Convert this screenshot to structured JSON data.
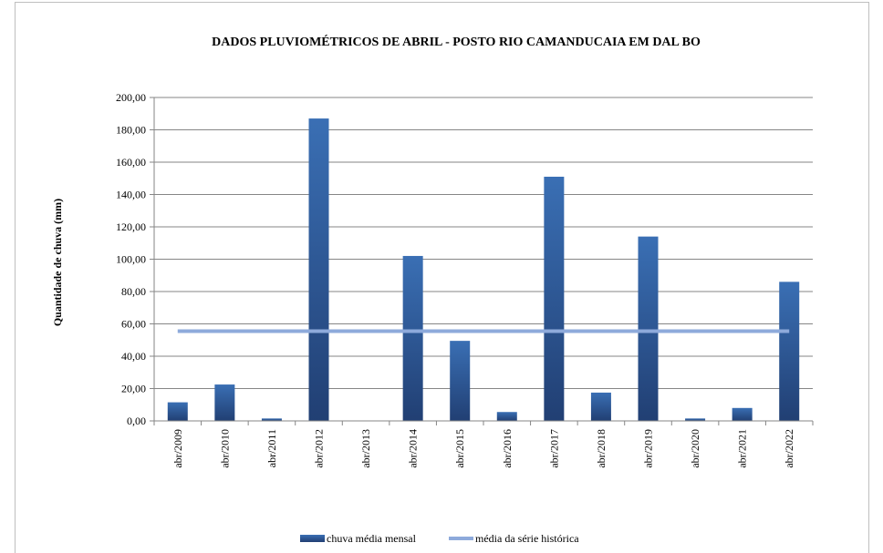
{
  "chart_data": {
    "type": "bar",
    "title": "DADOS PLUVIOMÉTRICOS DE ABRIL - POSTO RIO CAMANDUCAIA EM DAL BO",
    "ylabel": "Quantidade de chuva (mm)",
    "xlabel": "",
    "ylim": [
      0,
      200
    ],
    "yticks": [
      "0,00",
      "20,00",
      "40,00",
      "60,00",
      "80,00",
      "100,00",
      "120,00",
      "140,00",
      "160,00",
      "180,00",
      "200,00"
    ],
    "categories": [
      "abr/2009",
      "abr/2010",
      "abr/2011",
      "abr/2012",
      "abr/2013",
      "abr/2014",
      "abr/2015",
      "abr/2016",
      "abr/2017",
      "abr/2018",
      "abr/2019",
      "abr/2020",
      "abr/2021",
      "abr/2022"
    ],
    "series": [
      {
        "name": "chuva média mensal",
        "type": "bar",
        "color": "#2e5c9a",
        "values": [
          11.5,
          22.5,
          1.5,
          187,
          0,
          102,
          49.5,
          5.5,
          151,
          17.5,
          114,
          1.5,
          8,
          86
        ]
      },
      {
        "name": "média da série histórica",
        "type": "line",
        "color": "#8eaadb",
        "values": [
          55.5,
          55.5,
          55.5,
          55.5,
          55.5,
          55.5,
          55.5,
          55.5,
          55.5,
          55.5,
          55.5,
          55.5,
          55.5,
          55.5
        ]
      }
    ],
    "grid": true,
    "legend": "bottom"
  }
}
